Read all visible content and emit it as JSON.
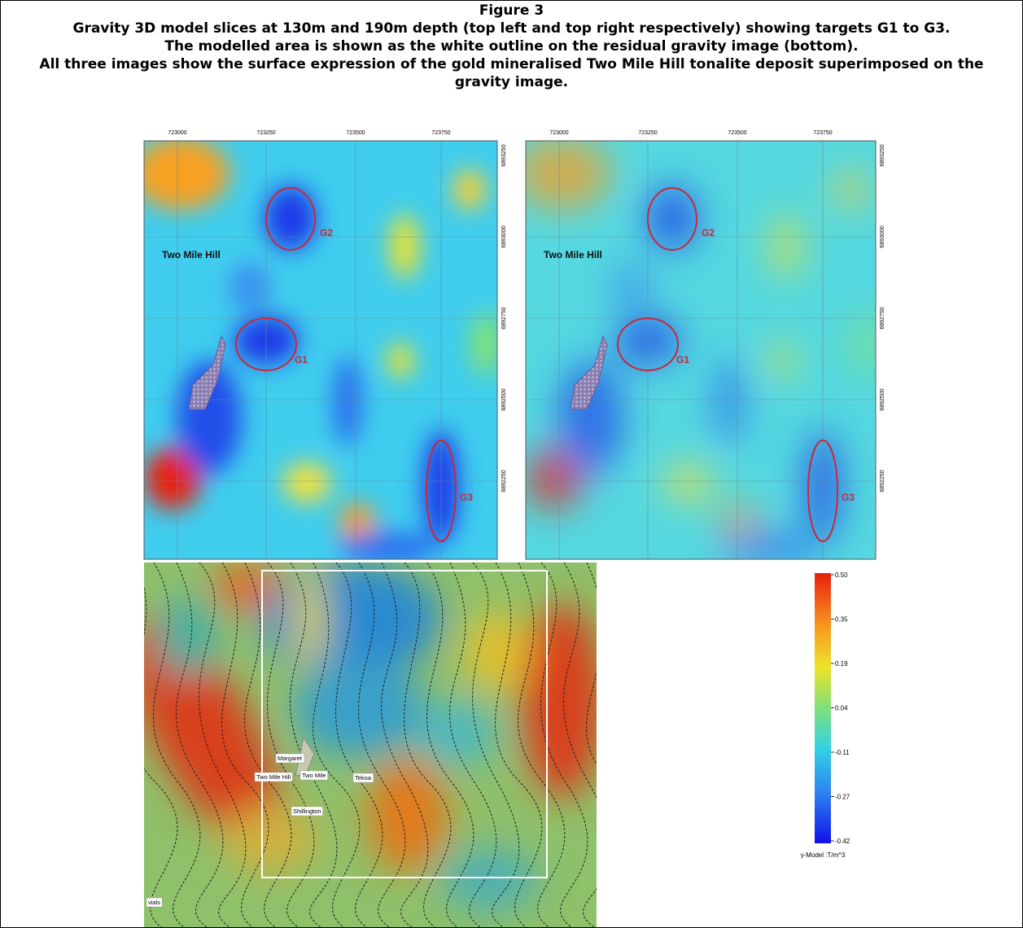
{
  "header": {
    "figure": "Figure 3",
    "caption": [
      "Gravity 3D model slices at 130m and 190m depth (top left and top right respectively) showing targets G1 to G3.",
      "The modelled area is shown as the white outline on the residual gravity image (bottom).",
      "All three images show the surface expression of the gold mineralised Two Mile Hill tonalite deposit superimposed on the",
      "gravity image."
    ]
  },
  "panels": [
    {
      "x_labels": [
        "723000",
        "723250",
        "723500",
        "723750"
      ],
      "y_labels": [
        "6893250",
        "6893000",
        "6892750",
        "6892500",
        "6892250"
      ],
      "targets": [
        "G1",
        "G2",
        "G3"
      ],
      "deposit": "Two Mile Hill"
    },
    {
      "x_labels": [
        "723000",
        "723250",
        "723500",
        "723750"
      ],
      "y_labels": [
        "6893250",
        "6893000",
        "6892750",
        "6892500",
        "6892250"
      ],
      "targets": [
        "G1",
        "G2",
        "G3"
      ],
      "deposit": "Two Mile Hill"
    }
  ],
  "residual_map": {
    "labels": [
      "Margaret",
      "Two Mile Hill",
      "Two Mile",
      "Tekoa",
      "Shillington",
      "vials"
    ]
  },
  "colorbar": {
    "labels": [
      "0.50",
      "0.35",
      "0.19",
      "0.04",
      "-0.11",
      "-0.27",
      "-0.42"
    ],
    "title": "γ-Model :T/m^3"
  }
}
